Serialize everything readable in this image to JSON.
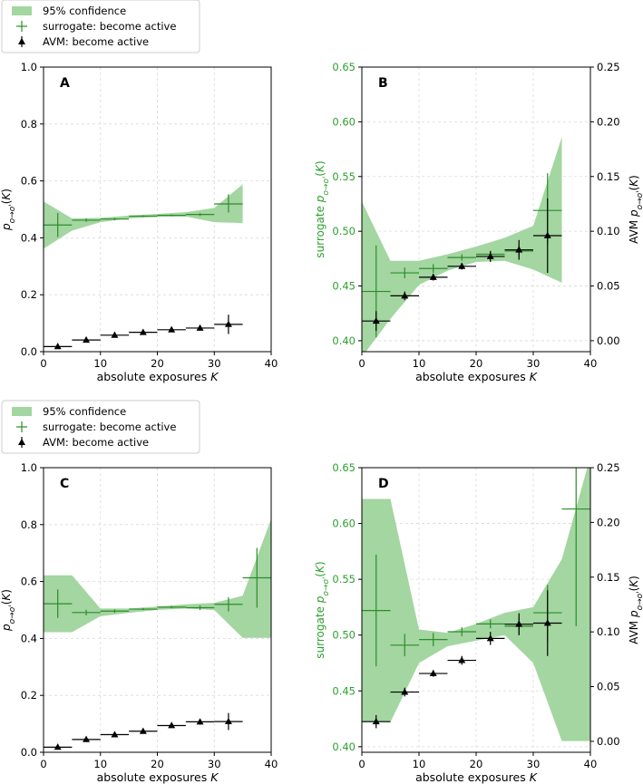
{
  "legend": {
    "band_label": "95% confidence",
    "surrogate_label": "surrogate: become active",
    "avm_label": "AVM: become active"
  },
  "colors": {
    "band": "#a3d6a0",
    "surrogate": "#2c8c2c",
    "avm": "#000000",
    "left_axis_label_BD": "#2ca02c",
    "grid": "#d9d9d9"
  },
  "chart_data": [
    {
      "panel": "A",
      "type": "line",
      "xlabel": "absolute exposures K",
      "ylabel": "p_{o→o'}(K)",
      "xlim": [
        0,
        40
      ],
      "ylim": [
        0,
        1.0
      ],
      "x_ticks": [
        0,
        10,
        20,
        30,
        40
      ],
      "y_ticks": [
        0.0,
        0.2,
        0.4,
        0.6,
        0.8,
        1.0
      ],
      "y_tick_labels": [
        "0.0",
        "0.2",
        "0.4",
        "0.6",
        "0.8",
        "1.0"
      ],
      "grid": true,
      "band": {
        "x": [
          0,
          5,
          10,
          15,
          20,
          25,
          30,
          35
        ],
        "upper": [
          0.528,
          0.468,
          0.47,
          0.478,
          0.484,
          0.49,
          0.505,
          0.588
        ],
        "lower": [
          0.362,
          0.425,
          0.455,
          0.468,
          0.474,
          0.475,
          0.455,
          0.452
        ]
      },
      "surrogate": {
        "x": [
          2.5,
          7.5,
          12.5,
          17.5,
          22.5,
          27.5,
          32.5
        ],
        "y": [
          0.445,
          0.462,
          0.466,
          0.476,
          0.479,
          0.482,
          0.519
        ],
        "yerr_lo": [
          0.042,
          0.006,
          0.004,
          0.003,
          0.003,
          0.005,
          0.03
        ],
        "yerr_hi": [
          0.042,
          0.006,
          0.004,
          0.003,
          0.003,
          0.005,
          0.034
        ]
      },
      "avm": {
        "x": [
          2.5,
          7.5,
          12.5,
          17.5,
          22.5,
          27.5,
          32.5
        ],
        "y": [
          0.018,
          0.041,
          0.058,
          0.068,
          0.077,
          0.083,
          0.096
        ],
        "yerr_lo": [
          0.008,
          0.004,
          0.003,
          0.003,
          0.004,
          0.008,
          0.034
        ],
        "yerr_hi": [
          0.008,
          0.004,
          0.003,
          0.003,
          0.004,
          0.008,
          0.034
        ]
      }
    },
    {
      "panel": "B",
      "type": "line",
      "xlabel": "absolute exposures K",
      "ylabel": "surrogate p_{o→o'}(K)",
      "ylabel_right": "AVM p_{o→o'}(K)",
      "xlim": [
        0,
        40
      ],
      "ylim": [
        0.39,
        0.65
      ],
      "ylim_right": [
        -0.01,
        0.25
      ],
      "x_ticks": [
        0,
        10,
        20,
        30,
        40
      ],
      "y_ticks": [
        0.4,
        0.45,
        0.5,
        0.55,
        0.6,
        0.65
      ],
      "y_tick_labels": [
        "0.40",
        "0.45",
        "0.50",
        "0.55",
        "0.60",
        "0.65"
      ],
      "y_ticks_right": [
        0.0,
        0.05,
        0.1,
        0.15,
        0.2,
        0.25
      ],
      "y_tick_labels_right": [
        "0.00",
        "0.05",
        "0.10",
        "0.15",
        "0.20",
        "0.25"
      ],
      "grid": true,
      "band": {
        "x": [
          0,
          5,
          10,
          15,
          20,
          25,
          30,
          35
        ],
        "upper": [
          0.527,
          0.473,
          0.473,
          0.479,
          0.486,
          0.494,
          0.505,
          0.586
        ],
        "lower": [
          0.385,
          0.42,
          0.451,
          0.464,
          0.472,
          0.473,
          0.465,
          0.453
        ]
      },
      "surrogate": {
        "x": [
          2.5,
          7.5,
          12.5,
          17.5,
          22.5,
          27.5,
          32.5
        ],
        "y": [
          0.445,
          0.462,
          0.466,
          0.476,
          0.479,
          0.482,
          0.519
        ],
        "yerr_lo": [
          0.042,
          0.005,
          0.004,
          0.003,
          0.003,
          0.005,
          0.031
        ],
        "yerr_hi": [
          0.042,
          0.005,
          0.004,
          0.003,
          0.003,
          0.005,
          0.034
        ]
      },
      "avm": {
        "x": [
          2.5,
          7.5,
          12.5,
          17.5,
          22.5,
          27.5,
          32.5
        ],
        "y": [
          0.018,
          0.041,
          0.058,
          0.068,
          0.077,
          0.083,
          0.096
        ],
        "yerr_lo": [
          0.009,
          0.004,
          0.003,
          0.003,
          0.005,
          0.009,
          0.034
        ],
        "yerr_hi": [
          0.009,
          0.004,
          0.003,
          0.003,
          0.005,
          0.009,
          0.034
        ]
      }
    },
    {
      "panel": "C",
      "type": "line",
      "xlabel": "absolute exposures K",
      "ylabel": "p_{o→o'}(K)",
      "xlim": [
        0,
        40
      ],
      "ylim": [
        0,
        1.0
      ],
      "x_ticks": [
        0,
        10,
        20,
        30,
        40
      ],
      "y_ticks": [
        0.0,
        0.2,
        0.4,
        0.6,
        0.8,
        1.0
      ],
      "y_tick_labels": [
        "0.0",
        "0.2",
        "0.4",
        "0.6",
        "0.8",
        "1.0"
      ],
      "grid": true,
      "band": {
        "x": [
          0,
          5,
          10,
          15,
          20,
          25,
          30,
          35,
          40
        ],
        "upper": [
          0.622,
          0.622,
          0.505,
          0.505,
          0.512,
          0.52,
          0.525,
          0.55,
          0.82
        ],
        "lower": [
          0.422,
          0.422,
          0.478,
          0.49,
          0.5,
          0.505,
          0.5,
          0.402,
          0.402
        ]
      },
      "surrogate": {
        "x": [
          2.5,
          7.5,
          12.5,
          17.5,
          22.5,
          27.5,
          32.5,
          37.5
        ],
        "y": [
          0.522,
          0.491,
          0.496,
          0.503,
          0.51,
          0.508,
          0.52,
          0.613
        ],
        "yerr_lo": [
          0.05,
          0.01,
          0.006,
          0.004,
          0.004,
          0.008,
          0.025,
          0.105
        ],
        "yerr_hi": [
          0.05,
          0.01,
          0.006,
          0.004,
          0.004,
          0.008,
          0.025,
          0.105
        ]
      },
      "avm": {
        "x": [
          2.5,
          7.5,
          12.5,
          17.5,
          22.5,
          27.5,
          32.5
        ],
        "y": [
          0.018,
          0.045,
          0.062,
          0.074,
          0.094,
          0.107,
          0.108
        ],
        "yerr_lo": [
          0.006,
          0.004,
          0.003,
          0.004,
          0.006,
          0.01,
          0.03
        ],
        "yerr_hi": [
          0.006,
          0.004,
          0.003,
          0.004,
          0.006,
          0.01,
          0.03
        ]
      }
    },
    {
      "panel": "D",
      "type": "line",
      "xlabel": "absolute exposures K",
      "ylabel": "surrogate p_{o→o'}(K)",
      "ylabel_right": "AVM p_{o→o'}(K)",
      "xlim": [
        0,
        40
      ],
      "ylim": [
        0.395,
        0.65
      ],
      "ylim_right": [
        -0.01,
        0.25
      ],
      "x_ticks": [
        0,
        10,
        20,
        30,
        40
      ],
      "y_ticks": [
        0.4,
        0.45,
        0.5,
        0.55,
        0.6,
        0.65
      ],
      "y_tick_labels": [
        "0.40",
        "0.45",
        "0.50",
        "0.55",
        "0.60",
        "0.65"
      ],
      "y_ticks_right": [
        0.0,
        0.05,
        0.1,
        0.15,
        0.2,
        0.25
      ],
      "y_tick_labels_right": [
        "0.00",
        "0.05",
        "0.10",
        "0.15",
        "0.20",
        "0.25"
      ],
      "grid": true,
      "band": {
        "x": [
          0,
          5,
          10,
          15,
          20,
          25,
          30,
          35,
          40
        ],
        "upper": [
          0.622,
          0.622,
          0.505,
          0.502,
          0.51,
          0.52,
          0.525,
          0.568,
          0.66
        ],
        "lower": [
          0.422,
          0.422,
          0.475,
          0.49,
          0.495,
          0.5,
          0.475,
          0.405,
          0.405
        ]
      },
      "surrogate": {
        "x": [
          2.5,
          7.5,
          12.5,
          17.5,
          22.5,
          27.5,
          32.5,
          37.5
        ],
        "y": [
          0.522,
          0.491,
          0.496,
          0.503,
          0.51,
          0.508,
          0.52,
          0.613
        ],
        "yerr_lo": [
          0.05,
          0.01,
          0.006,
          0.004,
          0.004,
          0.008,
          0.025,
          0.105
        ],
        "yerr_hi": [
          0.05,
          0.01,
          0.006,
          0.004,
          0.004,
          0.008,
          0.025,
          0.105
        ]
      },
      "avm": {
        "x": [
          2.5,
          7.5,
          12.5,
          17.5,
          22.5,
          27.5,
          32.5
        ],
        "y": [
          0.018,
          0.045,
          0.062,
          0.074,
          0.094,
          0.107,
          0.108
        ],
        "yerr_lo": [
          0.006,
          0.004,
          0.003,
          0.004,
          0.006,
          0.01,
          0.03
        ],
        "yerr_hi": [
          0.006,
          0.004,
          0.003,
          0.004,
          0.006,
          0.01,
          0.03
        ]
      }
    }
  ]
}
